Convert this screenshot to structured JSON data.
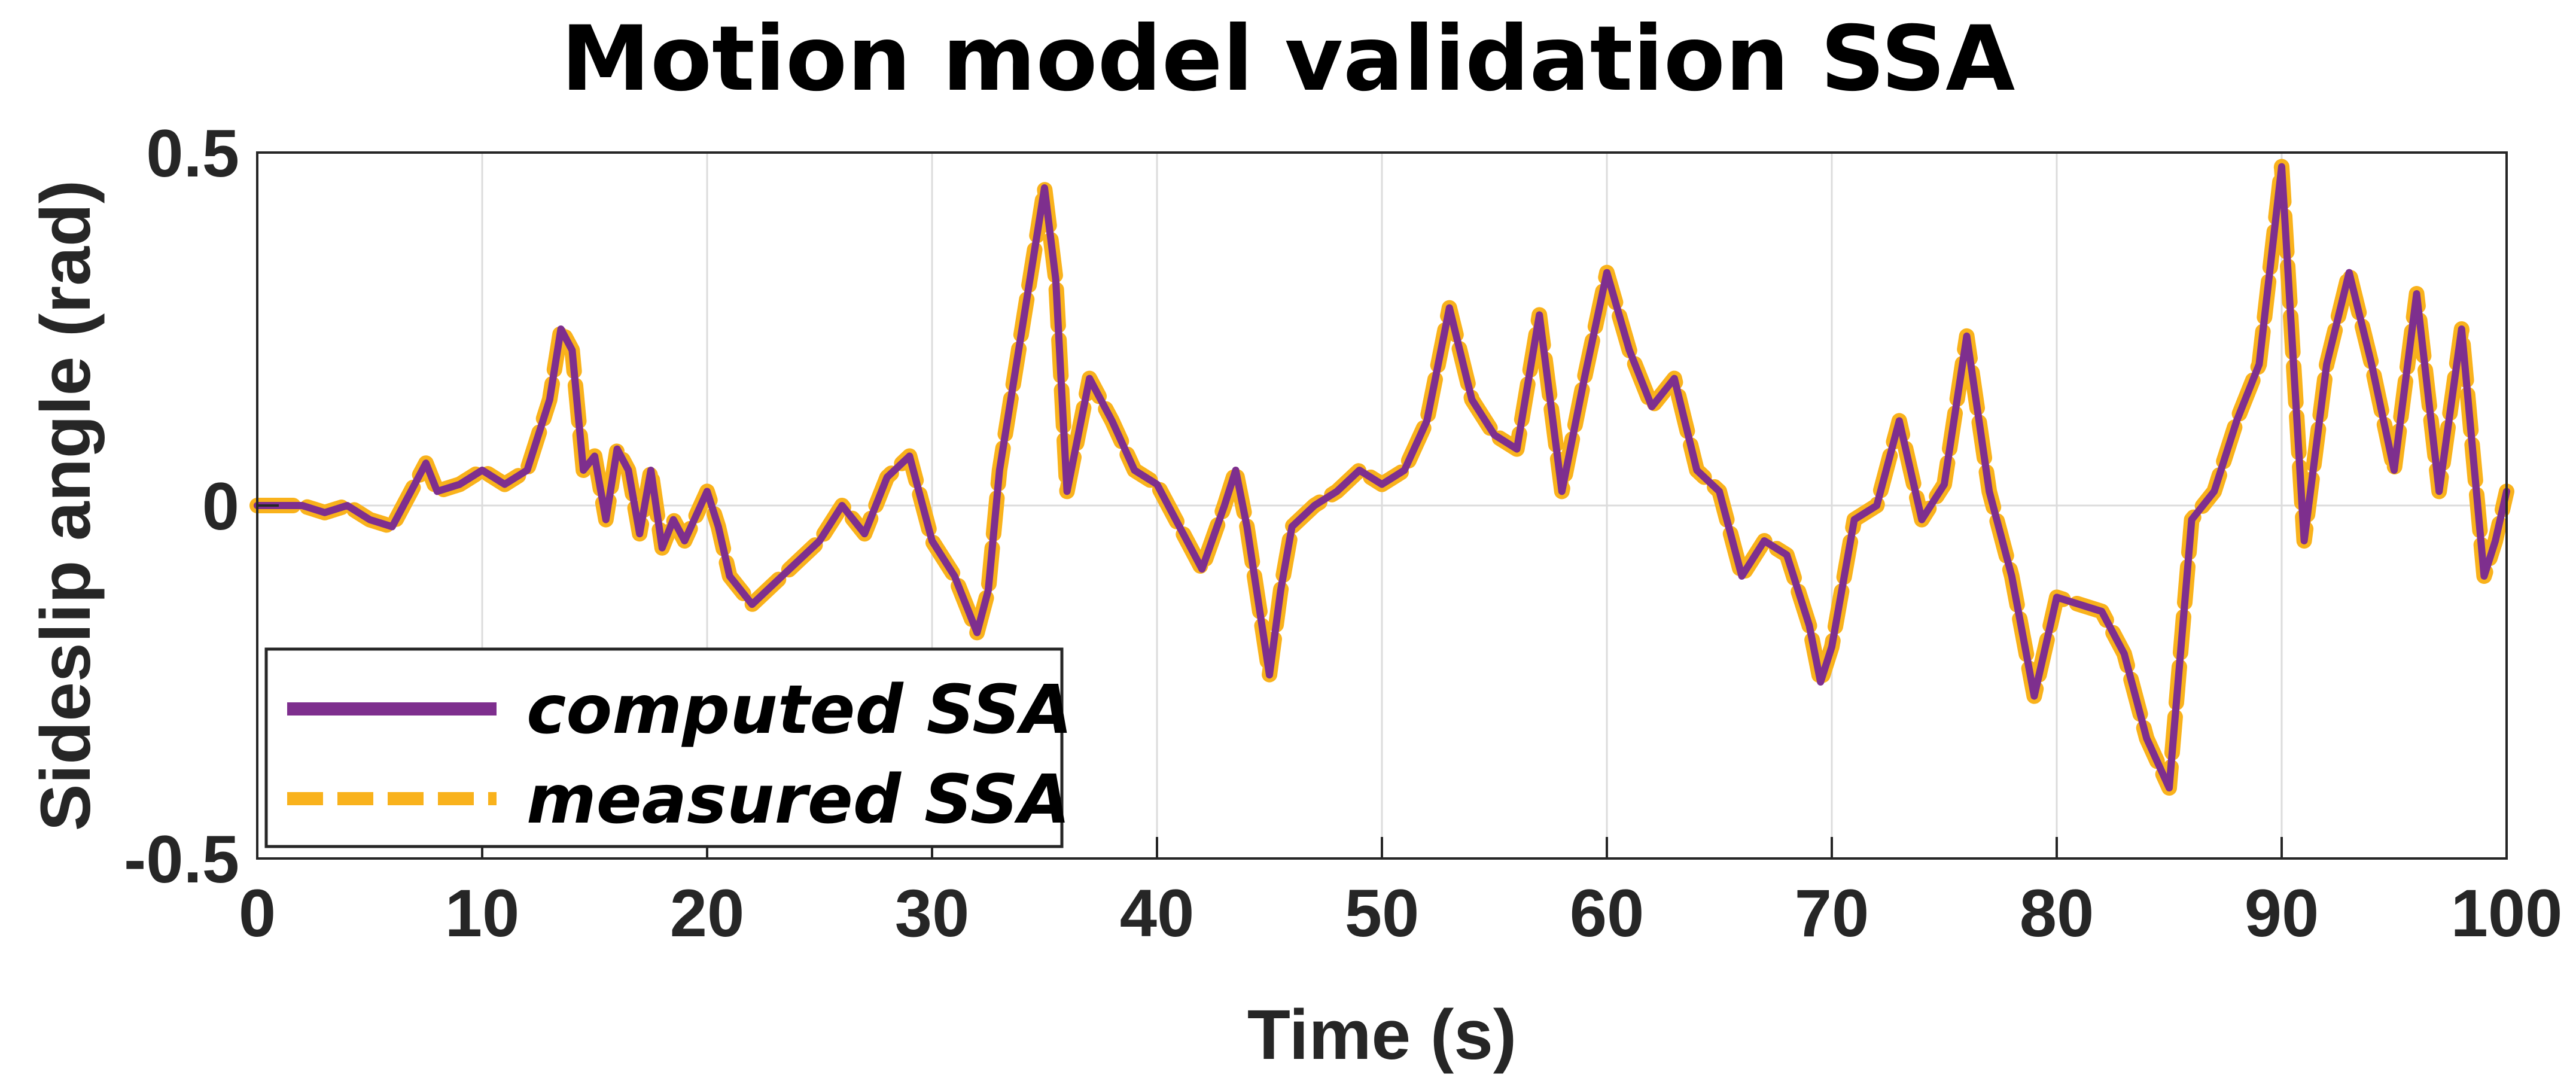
{
  "chart_data": {
    "type": "line",
    "title": "Motion model validation SSA",
    "xlabel": "Time (s)",
    "ylabel": "Sideslip angle (rad)",
    "xlim": [
      0,
      100
    ],
    "ylim": [
      -0.5,
      0.5
    ],
    "grid": true,
    "legend_position": "bottom-left",
    "x_ticks": [
      0,
      10,
      20,
      30,
      40,
      50,
      60,
      70,
      80,
      90,
      100
    ],
    "x_tick_labels": [
      "0",
      "10",
      "20",
      "30",
      "40",
      "50",
      "60",
      "70",
      "80",
      "90",
      "100"
    ],
    "y_ticks": [
      -0.5,
      0,
      0.5
    ],
    "y_tick_labels": [
      "-0.5",
      "0",
      "0.5"
    ],
    "x": [
      0,
      2,
      3,
      4,
      5,
      6,
      7,
      7.5,
      8,
      9,
      10,
      11,
      12,
      13,
      13.5,
      14,
      14.5,
      15,
      15.5,
      16,
      16.5,
      17,
      17.5,
      18,
      18.5,
      19,
      20,
      20.5,
      21,
      22,
      23,
      24,
      25,
      26,
      27,
      28,
      29,
      30,
      31,
      32,
      32.5,
      33,
      34,
      35,
      35.5,
      36,
      37,
      38,
      39,
      40,
      41,
      42,
      43,
      43.5,
      44,
      45,
      45.5,
      46,
      47,
      48,
      49,
      50,
      51,
      52,
      53,
      54,
      55,
      56,
      57,
      58,
      59,
      60,
      61,
      62,
      63,
      64,
      65,
      66,
      67,
      68,
      69,
      69.5,
      70,
      71,
      72,
      73,
      74,
      75,
      76,
      77,
      78,
      79,
      80,
      81,
      82,
      83,
      84,
      85,
      86,
      87,
      88,
      89,
      90,
      91,
      92,
      93,
      94,
      95,
      96,
      97,
      98,
      99,
      99.5,
      100
    ],
    "series": [
      {
        "name": "computed SSA",
        "color": "#7e2f8e",
        "style": "solid",
        "values": [
          0,
          0,
          -0.01,
          0,
          -0.02,
          -0.03,
          0.03,
          0.06,
          0.02,
          0.03,
          0.05,
          0.03,
          0.05,
          0.15,
          0.25,
          0.22,
          0.05,
          0.07,
          -0.02,
          0.08,
          0.05,
          -0.04,
          0.05,
          -0.06,
          -0.02,
          -0.05,
          0.02,
          -0.03,
          -0.1,
          -0.14,
          -0.11,
          -0.08,
          -0.05,
          0,
          -0.04,
          0.04,
          0.07,
          -0.05,
          -0.1,
          -0.18,
          -0.12,
          0.05,
          0.25,
          0.45,
          0.32,
          0.02,
          0.18,
          0.12,
          0.05,
          0.03,
          -0.03,
          -0.09,
          0,
          0.05,
          -0.03,
          -0.24,
          -0.12,
          -0.03,
          0,
          0.02,
          0.05,
          0.03,
          0.05,
          0.12,
          0.28,
          0.15,
          0.1,
          0.08,
          0.27,
          0.02,
          0.18,
          0.33,
          0.22,
          0.14,
          0.18,
          0.05,
          0.02,
          -0.1,
          -0.05,
          -0.07,
          -0.17,
          -0.25,
          -0.2,
          -0.02,
          0,
          0.12,
          -0.02,
          0.03,
          0.24,
          0.02,
          -0.1,
          -0.27,
          -0.13,
          -0.14,
          -0.15,
          -0.21,
          -0.33,
          -0.4,
          -0.02,
          0.02,
          0.12,
          0.2,
          0.48,
          -0.05,
          0.2,
          0.33,
          0.2,
          0.05,
          0.3,
          0.02,
          0.25,
          -0.1,
          -0.05,
          0.02
        ]
      },
      {
        "name": "measured SSA",
        "color": "#f9b21c",
        "style": "dashed",
        "values": [
          0,
          0,
          -0.01,
          0,
          -0.02,
          -0.03,
          0.03,
          0.06,
          0.02,
          0.03,
          0.05,
          0.03,
          0.05,
          0.15,
          0.25,
          0.22,
          0.05,
          0.07,
          -0.02,
          0.08,
          0.05,
          -0.04,
          0.05,
          -0.06,
          -0.02,
          -0.05,
          0.02,
          -0.03,
          -0.1,
          -0.14,
          -0.11,
          -0.08,
          -0.05,
          0,
          -0.04,
          0.04,
          0.07,
          -0.05,
          -0.1,
          -0.18,
          -0.12,
          0.05,
          0.25,
          0.45,
          0.32,
          0.02,
          0.18,
          0.12,
          0.05,
          0.03,
          -0.03,
          -0.09,
          0,
          0.05,
          -0.03,
          -0.24,
          -0.12,
          -0.03,
          0,
          0.02,
          0.05,
          0.03,
          0.05,
          0.12,
          0.28,
          0.15,
          0.1,
          0.08,
          0.27,
          0.02,
          0.18,
          0.33,
          0.22,
          0.14,
          0.18,
          0.05,
          0.02,
          -0.1,
          -0.05,
          -0.07,
          -0.17,
          -0.25,
          -0.2,
          -0.02,
          0,
          0.12,
          -0.02,
          0.03,
          0.24,
          0.02,
          -0.1,
          -0.27,
          -0.13,
          -0.14,
          -0.15,
          -0.21,
          -0.33,
          -0.4,
          -0.02,
          0.02,
          0.12,
          0.2,
          0.48,
          -0.05,
          0.2,
          0.33,
          0.2,
          0.05,
          0.3,
          0.02,
          0.25,
          -0.1,
          -0.05,
          0.02
        ]
      }
    ]
  }
}
